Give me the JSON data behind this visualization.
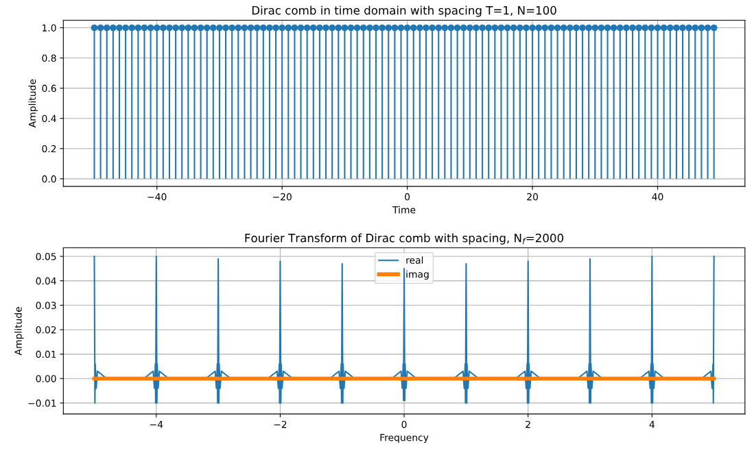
{
  "chart_data": [
    {
      "type": "lollipop",
      "title": "Dirac comb in time domain with spacing T=1, N=100",
      "xlabel": "Time",
      "ylabel": "Amplitude",
      "x": [
        -50,
        -49,
        -48,
        -47,
        -46,
        -45,
        -44,
        -43,
        -42,
        -41,
        -40,
        -39,
        -38,
        -37,
        -36,
        -35,
        -34,
        -33,
        -32,
        -31,
        -30,
        -29,
        -28,
        -27,
        -26,
        -25,
        -24,
        -23,
        -22,
        -21,
        -20,
        -19,
        -18,
        -17,
        -16,
        -15,
        -14,
        -13,
        -12,
        -11,
        -10,
        -9,
        -8,
        -7,
        -6,
        -5,
        -4,
        -3,
        -2,
        -1,
        0,
        1,
        2,
        3,
        4,
        5,
        6,
        7,
        8,
        9,
        10,
        11,
        12,
        13,
        14,
        15,
        16,
        17,
        18,
        19,
        20,
        21,
        22,
        23,
        24,
        25,
        26,
        27,
        28,
        29,
        30,
        31,
        32,
        33,
        34,
        35,
        36,
        37,
        38,
        39,
        40,
        41,
        42,
        43,
        44,
        45,
        46,
        47,
        48,
        49
      ],
      "values": [
        1,
        1,
        1,
        1,
        1,
        1,
        1,
        1,
        1,
        1,
        1,
        1,
        1,
        1,
        1,
        1,
        1,
        1,
        1,
        1,
        1,
        1,
        1,
        1,
        1,
        1,
        1,
        1,
        1,
        1,
        1,
        1,
        1,
        1,
        1,
        1,
        1,
        1,
        1,
        1,
        1,
        1,
        1,
        1,
        1,
        1,
        1,
        1,
        1,
        1,
        1,
        1,
        1,
        1,
        1,
        1,
        1,
        1,
        1,
        1,
        1,
        1,
        1,
        1,
        1,
        1,
        1,
        1,
        1,
        1,
        1,
        1,
        1,
        1,
        1,
        1,
        1,
        1,
        1,
        1,
        1,
        1,
        1,
        1,
        1,
        1,
        1,
        1,
        1,
        1,
        1,
        1,
        1,
        1,
        1,
        1,
        1,
        1,
        1,
        1
      ],
      "color": "#1f77b4",
      "marker": "circle",
      "grid": true,
      "xlim": [
        -54.95,
        53.95
      ],
      "xticks": [
        {
          "value": -40,
          "label": "−40"
        },
        {
          "value": -20,
          "label": "−20"
        },
        0,
        20,
        40
      ],
      "ylim": [
        -0.05,
        1.05
      ],
      "yticks": [
        {
          "value": 0,
          "label": "0.0"
        },
        0.2,
        0.4,
        0.6,
        0.8,
        {
          "value": 1,
          "label": "1.0"
        }
      ]
    },
    {
      "type": "line",
      "title": "Fourier Transform of Dirac comb with spacing, N$_{f}$=2000",
      "xlabel": "Frequency",
      "ylabel": "Amplitude",
      "grid": true,
      "legend": "top",
      "series": [
        {
          "name": "real",
          "color": "#1f77b4",
          "x": [
            -5,
            -4.99,
            -4.985,
            -4.97,
            -4.95,
            -4.8,
            -4.2,
            -4.05,
            -4.03,
            -4.015,
            -4.01,
            -4,
            -3.99,
            -3.985,
            -3.97,
            -3.95,
            -3.8,
            -3.2,
            -3.05,
            -3.03,
            -3.015,
            -3.01,
            -3,
            -2.99,
            -2.985,
            -2.97,
            -2.95,
            -2.8,
            -2.2,
            -2.05,
            -2.03,
            -2.015,
            -2.01,
            -2,
            -1.99,
            -1.985,
            -1.97,
            -1.95,
            -1.8,
            -1.2,
            -1.05,
            -1.03,
            -1.015,
            -1.01,
            -1,
            -0.99,
            -0.985,
            -0.97,
            -0.95,
            -0.8,
            -0.2,
            -0.05,
            -0.03,
            -0.015,
            -0.01,
            0,
            0.01,
            0.015,
            0.03,
            0.05,
            0.2,
            0.8,
            0.95,
            0.97,
            0.985,
            0.99,
            1,
            1.01,
            1.015,
            1.03,
            1.05,
            1.2,
            1.8,
            1.95,
            1.97,
            1.985,
            1.99,
            2,
            2.01,
            2.015,
            2.03,
            2.05,
            2.2,
            2.8,
            2.95,
            2.97,
            2.985,
            2.99,
            3,
            3.01,
            3.015,
            3.03,
            3.05,
            3.2,
            3.8,
            3.95,
            3.97,
            3.985,
            3.99,
            4,
            4.01,
            4.015,
            4.03,
            4.05,
            4.2,
            4.8,
            4.95,
            4.97,
            4.985,
            4.99,
            5
          ],
          "values": [
            0.05,
            -0.01,
            0.006,
            -0.004,
            0.003,
            0,
            0,
            0.003,
            -0.004,
            0.006,
            -0.01,
            0.05,
            -0.01,
            0.006,
            -0.004,
            0.003,
            0,
            0,
            0.003,
            -0.004,
            0.006,
            -0.01,
            0.049,
            -0.01,
            0.006,
            -0.004,
            0.003,
            0,
            0,
            0.003,
            -0.004,
            0.006,
            -0.01,
            0.048,
            -0.01,
            0.006,
            -0.004,
            0.003,
            0,
            0,
            0.003,
            -0.004,
            0.006,
            -0.01,
            0.047,
            -0.01,
            0.006,
            -0.004,
            0.003,
            0,
            0,
            0.003,
            -0.004,
            0.006,
            -0.009,
            0.045,
            -0.009,
            0.006,
            -0.004,
            0.003,
            0,
            0,
            0.003,
            -0.004,
            0.006,
            -0.01,
            0.047,
            -0.01,
            0.006,
            -0.004,
            0.003,
            0,
            0,
            0.003,
            -0.004,
            0.006,
            -0.01,
            0.048,
            -0.01,
            0.006,
            -0.004,
            0.003,
            0,
            0,
            0.003,
            -0.004,
            0.006,
            -0.01,
            0.049,
            -0.01,
            0.006,
            -0.004,
            0.003,
            0,
            0,
            0.003,
            -0.004,
            0.006,
            -0.01,
            0.05,
            -0.01,
            0.006,
            -0.004,
            0.003,
            0,
            0,
            0.003,
            -0.004,
            0.006,
            -0.01,
            0.05
          ]
        },
        {
          "name": "imag",
          "color": "#ff7f0e",
          "x": [
            -5,
            5
          ],
          "values": [
            0,
            0
          ]
        }
      ],
      "xlim": [
        -5.5,
        5.5
      ],
      "xticks": [
        {
          "value": -4,
          "label": "−4"
        },
        {
          "value": -2,
          "label": "−2"
        },
        0,
        2,
        4
      ],
      "ylim": [
        -0.0145,
        0.0535
      ],
      "yticks": [
        {
          "value": -0.01,
          "label": "−0.01"
        },
        {
          "value": 0,
          "label": "0.00"
        },
        0.01,
        0.02,
        0.03,
        0.04,
        0.05
      ]
    }
  ]
}
